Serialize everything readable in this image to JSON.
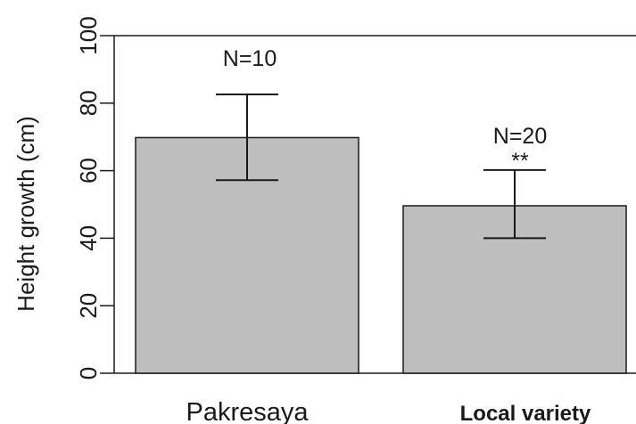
{
  "chart_data": {
    "type": "bar",
    "title": "",
    "xlabel": "",
    "ylabel": "Height growth (cm)",
    "ylim": [
      0,
      100
    ],
    "y_ticks": [
      0,
      20,
      40,
      60,
      80,
      100
    ],
    "y_tick_labels": [
      "0",
      "20",
      "40",
      "60",
      "80",
      "100"
    ],
    "categories": [
      "Pakresaya",
      "Local variety"
    ],
    "values": [
      69.8,
      49.6
    ],
    "error_upper": [
      82.6,
      60.2
    ],
    "error_lower": [
      57.2,
      40.0
    ],
    "annotations": [
      {
        "category": "Pakresaya",
        "sample_size": "N=10",
        "significance": ""
      },
      {
        "category": "Local variety",
        "sample_size": "N=20",
        "significance": "**"
      }
    ],
    "grid": false,
    "legend": "none",
    "colors": {
      "bar_fill": "#bebebe",
      "bar_stroke": "#1a1a1a",
      "error_bar": "#1a1a1a",
      "axis": "#1a1a1a"
    }
  }
}
